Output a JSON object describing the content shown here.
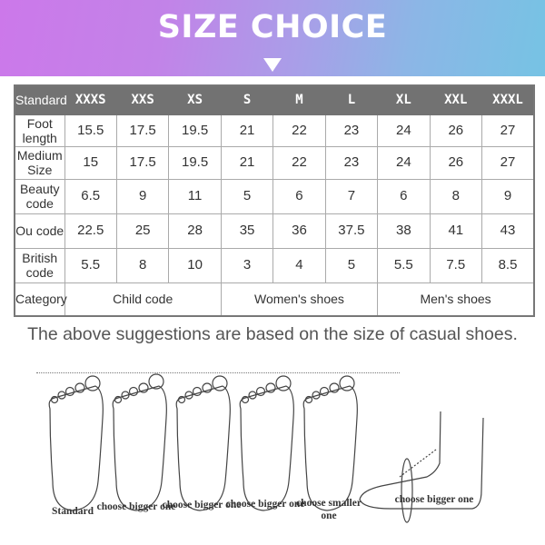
{
  "header": {
    "title": "SIZE CHOICE",
    "arrow_icon": "triangle-down-icon"
  },
  "table": {
    "columns": [
      "Standard",
      "XXXS",
      "XXS",
      "XS",
      "S",
      "M",
      "L",
      "XL",
      "XXL",
      "XXXL"
    ],
    "rows": [
      {
        "label": "Foot length",
        "values": [
          "15.5",
          "17.5",
          "19.5",
          "21",
          "22",
          "23",
          "24",
          "26",
          "27"
        ]
      },
      {
        "label": "Medium Size",
        "values": [
          "15",
          "17.5",
          "19.5",
          "21",
          "22",
          "23",
          "24",
          "26",
          "27"
        ]
      },
      {
        "label": "Beauty code",
        "values": [
          "6.5",
          "9",
          "11",
          "5",
          "6",
          "7",
          "6",
          "8",
          "9"
        ]
      },
      {
        "label": "Ou code",
        "values": [
          "22.5",
          "25",
          "28",
          "35",
          "36",
          "37.5",
          "38",
          "41",
          "43"
        ]
      },
      {
        "label": "British code",
        "values": [
          "5.5",
          "8",
          "10",
          "3",
          "4",
          "5",
          "5.5",
          "7.5",
          "8.5"
        ]
      }
    ],
    "category": {
      "label": "Category",
      "groups": [
        "Child code",
        "Women's shoes",
        "Men's shoes"
      ]
    },
    "header_color": "#727272"
  },
  "note": "The above suggestions are based on the size of casual shoes.",
  "feet": {
    "captions": [
      "Standard",
      "choose bigger one",
      "choose bigger one",
      "choose bigger one",
      "choose smaller one",
      "choose bigger one"
    ]
  }
}
